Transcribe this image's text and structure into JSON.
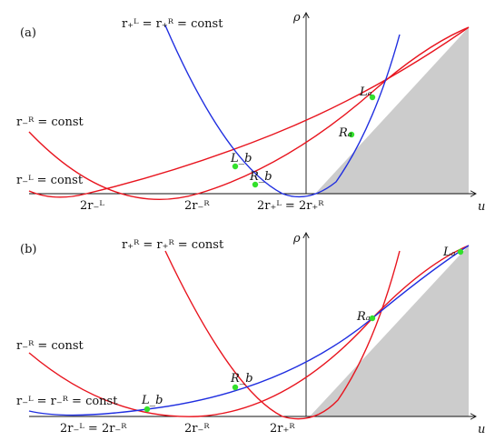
{
  "colors": {
    "red": "#e8141e",
    "blue": "#1f2ee0",
    "green": "#33e02b",
    "shade": "#cccccc",
    "axis": "#111111"
  },
  "panel_a": {
    "tag": "(a)",
    "y_axis_label": "ρ",
    "x_axis_label": "u",
    "curve_labels": {
      "blue": "r₊ᴸ = r₊ᴿ = const",
      "red_upper": "r₋ᴿ = const",
      "red_lower": "r₋ᴸ = const"
    },
    "ticks": {
      "t1": "2r₋ᴸ",
      "t2": "2r₋ᴿ",
      "t3": "2r₊ᴸ = 2r₊ᴿ"
    },
    "points": {
      "La": "Lₐ",
      "Ra": "Rₐ",
      "Lb": "L_b",
      "Rb": "R_b"
    }
  },
  "panel_b": {
    "tag": "(b)",
    "y_axis_label": "ρ",
    "x_axis_label": "u",
    "curve_labels": {
      "red_top": "r₊ᴿ = r₊ᴿ = const",
      "red_mid": "r₋ᴿ = const",
      "blue": "r₋ᴸ = r₋ᴿ = const"
    },
    "ticks": {
      "t1": "2r₋ᴸ = 2r₋ᴿ",
      "t2": "2r₋ᴿ",
      "t3": "2r₊ᴿ"
    },
    "points": {
      "La": "Lₐ",
      "Ra": "Rₐ",
      "Lb": "L_b",
      "Rb": "R_b"
    }
  }
}
